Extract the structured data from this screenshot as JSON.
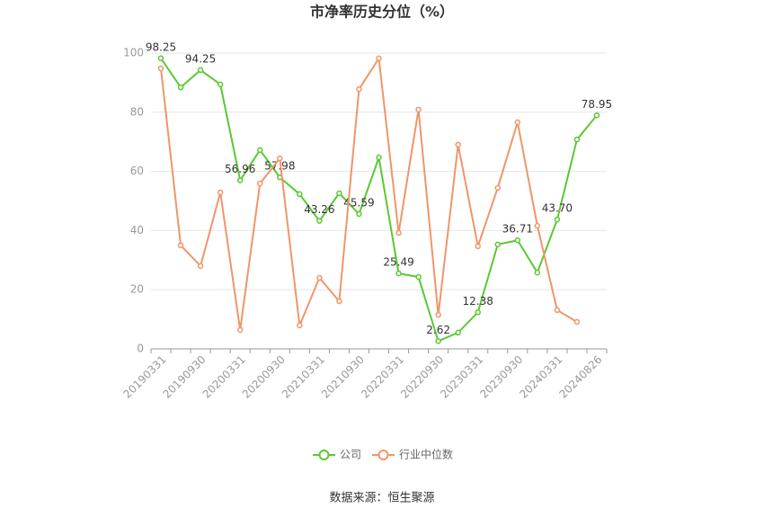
{
  "chart_data": {
    "type": "line",
    "title": "市净率历史分位（%）",
    "categories": [
      "20190331",
      null,
      "20190930",
      null,
      "20200331",
      null,
      "20200930",
      null,
      "20210331",
      null,
      "20210930",
      null,
      "20220331",
      null,
      "20220930",
      null,
      "20230331",
      null,
      "20230930",
      null,
      "20240331",
      null,
      "20240826"
    ],
    "series": [
      {
        "name": "公司",
        "color": "#5ac832",
        "values": [
          98.25,
          88.4,
          94.25,
          89.4,
          56.96,
          67.2,
          57.98,
          52.3,
          43.26,
          52.6,
          45.59,
          64.7,
          25.49,
          24.3,
          2.62,
          5.5,
          12.38,
          35.3,
          36.71,
          25.8,
          43.7,
          70.8,
          78.95
        ],
        "value_labels": [
          "98.25",
          null,
          "94.25",
          null,
          "56.96",
          null,
          "57.98",
          null,
          "43.26",
          null,
          "45.59",
          null,
          "25.49",
          null,
          "2.62",
          null,
          "12.38",
          null,
          "36.71",
          null,
          "43.70",
          null,
          "78.95"
        ]
      },
      {
        "name": "行业中位数",
        "color": "#f0956a",
        "values": [
          94.8,
          35,
          28,
          52.9,
          6.4,
          55.9,
          64.4,
          7.9,
          24,
          16.1,
          87.8,
          98.2,
          39.2,
          80.9,
          11.5,
          69,
          34.7,
          54.4,
          76.6,
          41.6,
          13.1,
          9.1,
          null
        ]
      }
    ],
    "ylim": [
      0,
      100
    ],
    "yticks": [
      0,
      20,
      40,
      60,
      80,
      100
    ],
    "grid": true,
    "source": "数据来源：恒生聚源"
  }
}
